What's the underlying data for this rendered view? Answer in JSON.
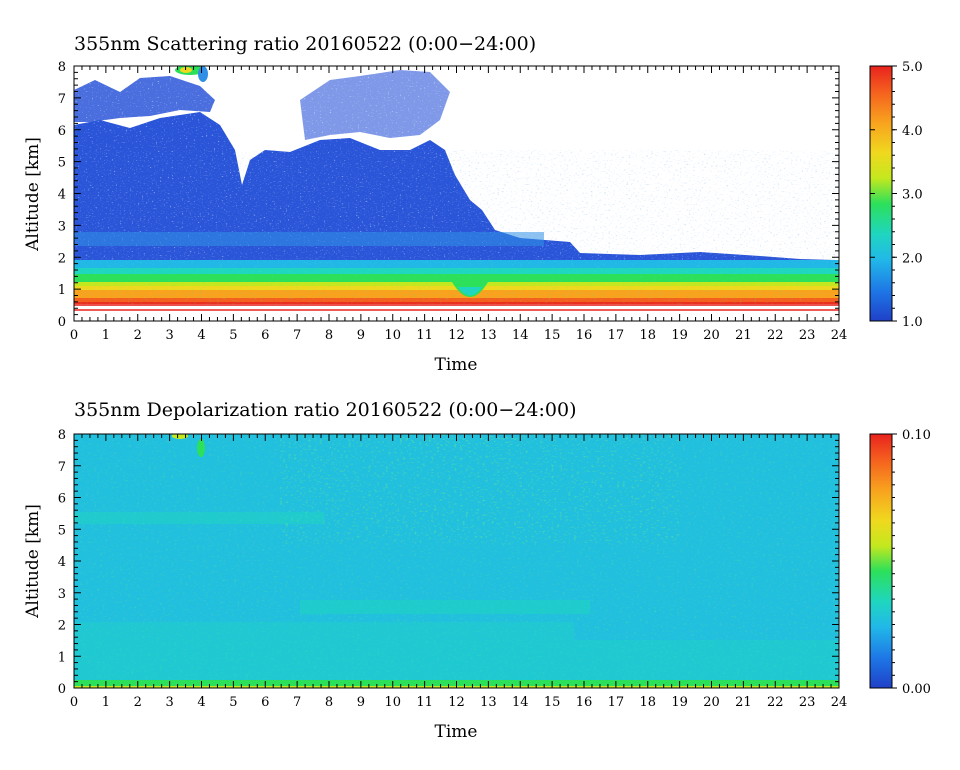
{
  "chart_data": [
    {
      "type": "heatmap",
      "title": "355nm Scattering ratio  20160522 (0:00−24:00)",
      "xlabel": "Time",
      "ylabel": "Altitude [km]",
      "xlim": [
        0,
        24
      ],
      "ylim": [
        0,
        8
      ],
      "x_ticks": [
        "0",
        "1",
        "2",
        "3",
        "4",
        "5",
        "6",
        "7",
        "8",
        "9",
        "10",
        "11",
        "12",
        "13",
        "14",
        "15",
        "16",
        "17",
        "18",
        "19",
        "20",
        "21",
        "22",
        "23",
        "24"
      ],
      "y_ticks": [
        "0",
        "1",
        "2",
        "3",
        "4",
        "5",
        "6",
        "7",
        "8"
      ],
      "colorbar": {
        "min": 1.0,
        "max": 5.0,
        "ticks": [
          "1.0",
          "2.0",
          "3.0",
          "4.0",
          "5.0"
        ]
      },
      "features": {
        "surface_layer_km": [
          0.4,
          0.9
        ],
        "boundary_layer_top_km": 1.7,
        "cloud_top_early_km": 5.8,
        "cloud_top_late_km": 2.0
      }
    },
    {
      "type": "heatmap",
      "title": "355nm Depolarization ratio  20160522 (0:00−24:00)",
      "xlabel": "Time",
      "ylabel": "Altitude [km]",
      "xlim": [
        0,
        24
      ],
      "ylim": [
        0,
        8
      ],
      "x_ticks": [
        "0",
        "1",
        "2",
        "3",
        "4",
        "5",
        "6",
        "7",
        "8",
        "9",
        "10",
        "11",
        "12",
        "13",
        "14",
        "15",
        "16",
        "17",
        "18",
        "19",
        "20",
        "21",
        "22",
        "23",
        "24"
      ],
      "y_ticks": [
        "0",
        "1",
        "2",
        "3",
        "4",
        "5",
        "6",
        "7",
        "8"
      ],
      "colorbar": {
        "min": 0.0,
        "max": 0.1,
        "ticks": [
          "0.00",
          "0.10"
        ]
      },
      "features": {
        "background_level": 0.035,
        "elevated_noise_above_km": 6.0
      }
    }
  ],
  "colors": {
    "colormap": [
      "#1f40c8",
      "#1e78e6",
      "#21b8e8",
      "#1fd6c0",
      "#2ce05a",
      "#c4e81e",
      "#f0d81e",
      "#f8a21e",
      "#f55f1e",
      "#e8231e"
    ]
  }
}
